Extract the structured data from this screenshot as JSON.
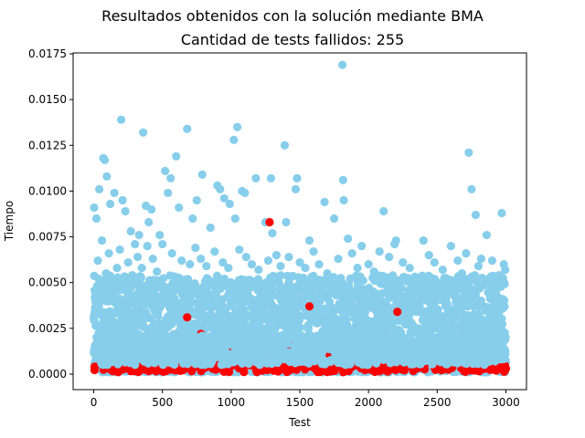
{
  "chart_data": {
    "type": "scatter",
    "suptitle": "Resultados obtenidos con la solución mediante BMA",
    "title": "Cantidad de tests fallidos: 255",
    "xlabel": "Test",
    "ylabel": "Tiempo",
    "xlim": [
      -150,
      3150
    ],
    "ylim": [
      -0.00085,
      0.01755
    ],
    "xticks": [
      0,
      500,
      1000,
      1500,
      2000,
      2500,
      3000
    ],
    "xtick_labels": [
      "0",
      "500",
      "1000",
      "1500",
      "2000",
      "2500",
      "3000"
    ],
    "yticks": [
      0.0,
      0.0025,
      0.005,
      0.0075,
      0.01,
      0.0125,
      0.015,
      0.0175
    ],
    "ytick_labels": [
      "0.0000",
      "0.0025",
      "0.0050",
      "0.0075",
      "0.0100",
      "0.0125",
      "0.0150",
      "0.0175"
    ],
    "grid": false,
    "legend": "none",
    "n_tests": 3000,
    "colors": {
      "passed": "#87ceeb",
      "failed": "#ff0000"
    },
    "series": [
      {
        "status": "passed",
        "color": "#87ceeb",
        "points": [
          [
            3,
            0.0091
          ],
          [
            20,
            0.0085
          ],
          [
            40,
            0.0101
          ],
          [
            70,
            0.0118
          ],
          [
            80,
            0.0117
          ],
          [
            95,
            0.0108
          ],
          [
            120,
            0.0093
          ],
          [
            150,
            0.0099
          ],
          [
            200,
            0.0139
          ],
          [
            210,
            0.0095
          ],
          [
            230,
            0.0089
          ],
          [
            270,
            0.0078
          ],
          [
            300,
            0.0071
          ],
          [
            330,
            0.0076
          ],
          [
            360,
            0.0132
          ],
          [
            380,
            0.0092
          ],
          [
            400,
            0.0083
          ],
          [
            420,
            0.009
          ],
          [
            480,
            0.0076
          ],
          [
            520,
            0.0111
          ],
          [
            540,
            0.0099
          ],
          [
            560,
            0.0107
          ],
          [
            600,
            0.0119
          ],
          [
            620,
            0.0091
          ],
          [
            680,
            0.0134
          ],
          [
            720,
            0.0085
          ],
          [
            750,
            0.0095
          ],
          [
            790,
            0.0109
          ],
          [
            850,
            0.008
          ],
          [
            900,
            0.0103
          ],
          [
            920,
            0.0101
          ],
          [
            950,
            0.0096
          ],
          [
            990,
            0.0093
          ],
          [
            1020,
            0.0128
          ],
          [
            1030,
            0.0085
          ],
          [
            1045,
            0.0135
          ],
          [
            1080,
            0.01
          ],
          [
            1100,
            0.0099
          ],
          [
            1180,
            0.0107
          ],
          [
            1250,
            0.0083
          ],
          [
            1290,
            0.0107
          ],
          [
            1300,
            0.0077
          ],
          [
            1390,
            0.0125
          ],
          [
            1400,
            0.0083
          ],
          [
            1470,
            0.0101
          ],
          [
            1480,
            0.0107
          ],
          [
            1570,
            0.0073
          ],
          [
            1680,
            0.0094
          ],
          [
            1750,
            0.0085
          ],
          [
            1810,
            0.0169
          ],
          [
            1815,
            0.0106
          ],
          [
            1820,
            0.0095
          ],
          [
            1850,
            0.0074
          ],
          [
            1950,
            0.007
          ],
          [
            2080,
            0.0067
          ],
          [
            2110,
            0.0089
          ],
          [
            2200,
            0.0073
          ],
          [
            2250,
            0.0061
          ],
          [
            2400,
            0.0073
          ],
          [
            2440,
            0.0065
          ],
          [
            2600,
            0.007
          ],
          [
            2710,
            0.0066
          ],
          [
            2730,
            0.0121
          ],
          [
            2750,
            0.0101
          ],
          [
            2780,
            0.0087
          ],
          [
            2820,
            0.0063
          ],
          [
            2860,
            0.0076
          ],
          [
            2970,
            0.0088
          ],
          [
            2985,
            0.006
          ],
          [
            10,
            0.0045
          ],
          [
            30,
            0.0062
          ],
          [
            60,
            0.0073
          ],
          [
            90,
            0.0055
          ],
          [
            110,
            0.0066
          ],
          [
            140,
            0.0049
          ],
          [
            170,
            0.0058
          ],
          [
            190,
            0.0068
          ],
          [
            250,
            0.0061
          ],
          [
            280,
            0.0054
          ],
          [
            320,
            0.0064
          ],
          [
            350,
            0.0058
          ],
          [
            390,
            0.007
          ],
          [
            430,
            0.0063
          ],
          [
            460,
            0.0056
          ],
          [
            500,
            0.0071
          ],
          [
            570,
            0.0066
          ],
          [
            640,
            0.0062
          ],
          [
            700,
            0.006
          ],
          [
            740,
            0.0069
          ],
          [
            780,
            0.0063
          ],
          [
            820,
            0.0059
          ],
          [
            880,
            0.0067
          ],
          [
            940,
            0.0061
          ],
          [
            980,
            0.0058
          ],
          [
            1060,
            0.0068
          ],
          [
            1110,
            0.0064
          ],
          [
            1150,
            0.006
          ],
          [
            1200,
            0.0057
          ],
          [
            1270,
            0.0062
          ],
          [
            1330,
            0.0065
          ],
          [
            1360,
            0.0059
          ],
          [
            1420,
            0.0064
          ],
          [
            1500,
            0.0061
          ],
          [
            1540,
            0.0058
          ],
          [
            1600,
            0.0067
          ],
          [
            1640,
            0.006
          ],
          [
            1700,
            0.0055
          ],
          [
            1780,
            0.0063
          ],
          [
            1880,
            0.0066
          ],
          [
            1920,
            0.0058
          ],
          [
            2000,
            0.006
          ],
          [
            2040,
            0.0056
          ],
          [
            2150,
            0.0064
          ],
          [
            2190,
            0.0071
          ],
          [
            2300,
            0.0058
          ],
          [
            2350,
            0.0052
          ],
          [
            2480,
            0.0061
          ],
          [
            2540,
            0.0057
          ],
          [
            2650,
            0.0062
          ],
          [
            2680,
            0.0055
          ],
          [
            2800,
            0.0059
          ],
          [
            2900,
            0.0062
          ],
          [
            2950,
            0.0054
          ],
          [
            2995,
            0.0057
          ]
        ]
      },
      {
        "status": "failed",
        "color": "#ff0000",
        "points": [
          [
            1280,
            0.0083
          ],
          [
            680,
            0.0031
          ],
          [
            780,
            0.0022
          ],
          [
            1570,
            0.0037
          ],
          [
            1990,
            0.0018
          ],
          [
            2210,
            0.0034
          ],
          [
            1420,
            0.0016
          ],
          [
            1000,
            0.0014
          ],
          [
            480,
            0.0013
          ],
          [
            160,
            0.0013
          ],
          [
            2690,
            0.001
          ],
          [
            2930,
            0.0012
          ],
          [
            2480,
            0.0008
          ],
          [
            600,
            0.0009
          ],
          [
            2350,
            0.0007
          ],
          [
            1300,
            0.0012
          ],
          [
            850,
            0.0018
          ],
          [
            1700,
            0.001
          ],
          [
            2100,
            0.0009
          ],
          [
            350,
            0.0006
          ],
          [
            2995,
            0.0003
          ],
          [
            3000,
            0.0003
          ]
        ]
      }
    ]
  }
}
